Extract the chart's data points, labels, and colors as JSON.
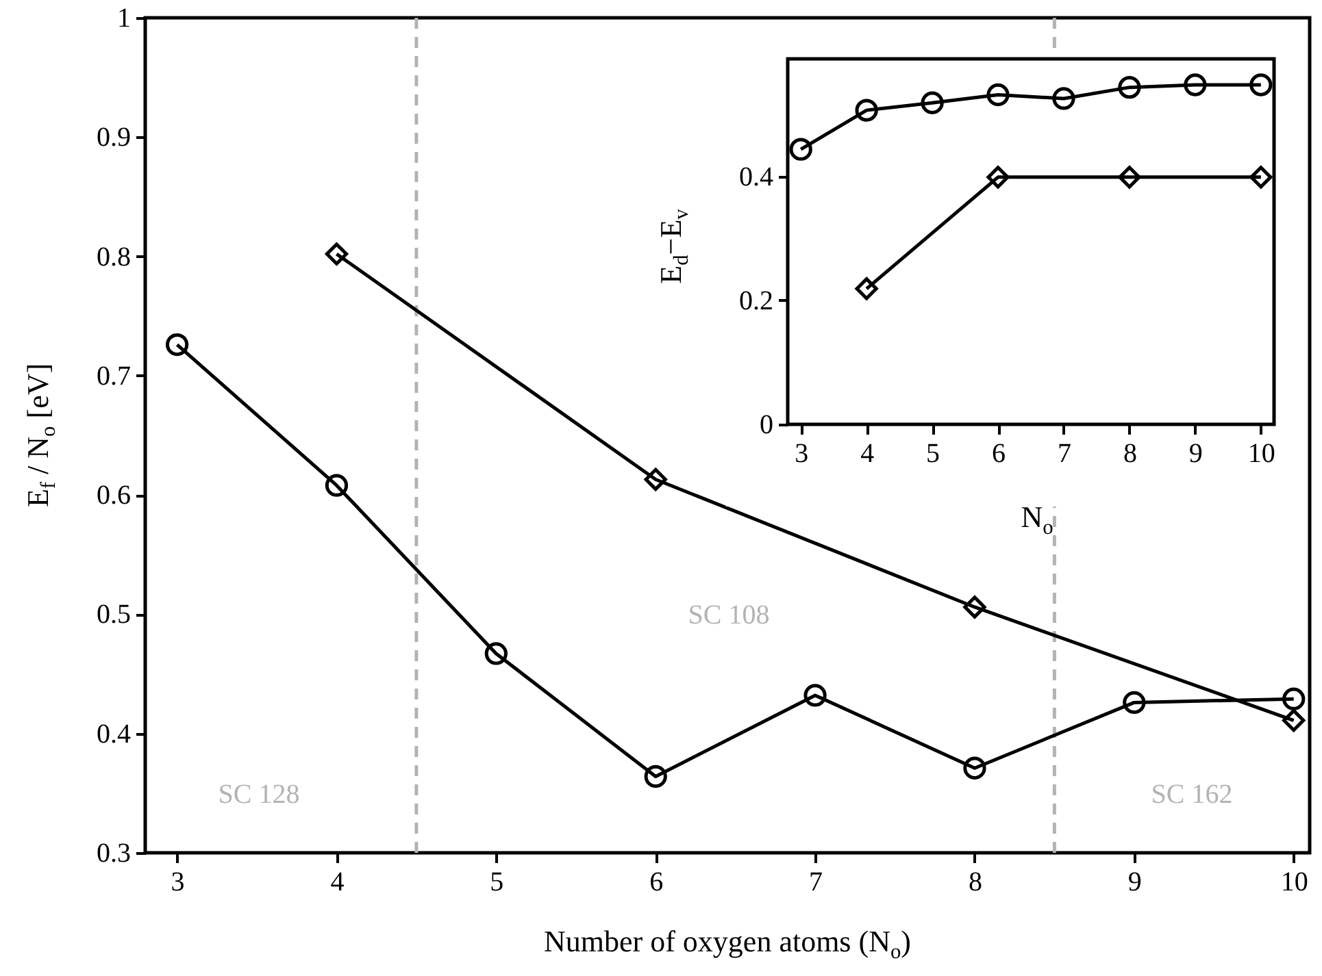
{
  "chart_data": [
    {
      "type": "line",
      "xlabel": "Number of oxygen atoms (N$_{o}$)",
      "ylabel": "E$_{f}$ / N$_{o}$   [eV]",
      "x": [
        3,
        4,
        5,
        6,
        7,
        8,
        9,
        10
      ],
      "series": [
        {
          "color": "#000000",
          "marker": "circle",
          "values": [
            0.726,
            0.608,
            0.467,
            0.364,
            0.432,
            0.371,
            0.426,
            0.429
          ]
        },
        {
          "color": "#000000",
          "marker": "diamond",
          "x": [
            4,
            6,
            8,
            10
          ],
          "values": [
            0.802,
            0.613,
            0.506,
            0.411
          ]
        }
      ],
      "xlim": [
        2.8,
        10.1
      ],
      "xticks": [
        3,
        4,
        5,
        6,
        7,
        8,
        9,
        10
      ],
      "ylim": [
        0.3,
        1
      ],
      "yticks": [
        0.3,
        0.4,
        0.5,
        0.6,
        0.7,
        0.8,
        0.9,
        1
      ],
      "grid": false,
      "line_style": "solid",
      "ref_lines": [
        {
          "axis": "x",
          "value": 4.5,
          "color": "#b3b3b3",
          "line_style": "dashed"
        },
        {
          "axis": "x",
          "value": 8.5,
          "color": "#b3b3b3",
          "line_style": "dashed"
        }
      ],
      "annotations": [
        "SC 128",
        "SC 108",
        "SC 162"
      ]
    },
    {
      "type": "line",
      "xlabel": "N$_{o}$",
      "ylabel": "E$_{d}$−E$_{v}$",
      "x": [
        3,
        4,
        5,
        6,
        7,
        8,
        9,
        10
      ],
      "series": [
        {
          "color": "#000000",
          "marker": "circle",
          "values": [
            0.444,
            0.507,
            0.519,
            0.532,
            0.526,
            0.544,
            0.548,
            0.548
          ]
        },
        {
          "color": "#000000",
          "marker": "diamond",
          "x": [
            4,
            6,
            8,
            10
          ],
          "values": [
            0.219,
            0.399,
            0.399,
            0.399
          ]
        }
      ],
      "xlim": [
        2.8,
        10.2
      ],
      "xticks": [
        3,
        4,
        5,
        6,
        7,
        8,
        9,
        10
      ],
      "ylim": [
        0,
        0.59
      ],
      "yticks": [
        0,
        0.2,
        0.4
      ],
      "grid": false,
      "line_style": "solid"
    }
  ]
}
